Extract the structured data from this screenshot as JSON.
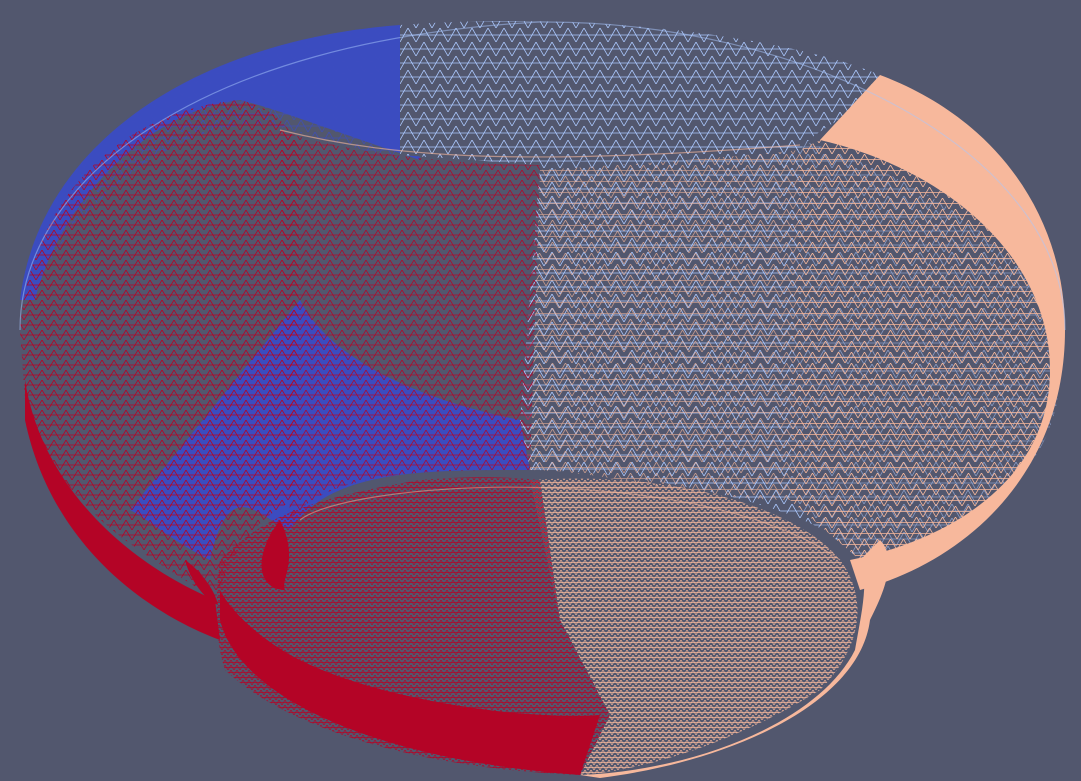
{
  "viewport": {
    "background_color": "#52576e",
    "render_mode": "wireframe",
    "object": "partitioned-toroidal-mesh"
  },
  "mesh": {
    "partitions": [
      {
        "id": "partition-dark-blue",
        "color": "#3b4cc0"
      },
      {
        "id": "partition-light-blue",
        "color": "#aac7fd"
      },
      {
        "id": "partition-light-orange",
        "color": "#f7b89c"
      },
      {
        "id": "partition-dark-red",
        "color": "#b40426"
      }
    ]
  }
}
